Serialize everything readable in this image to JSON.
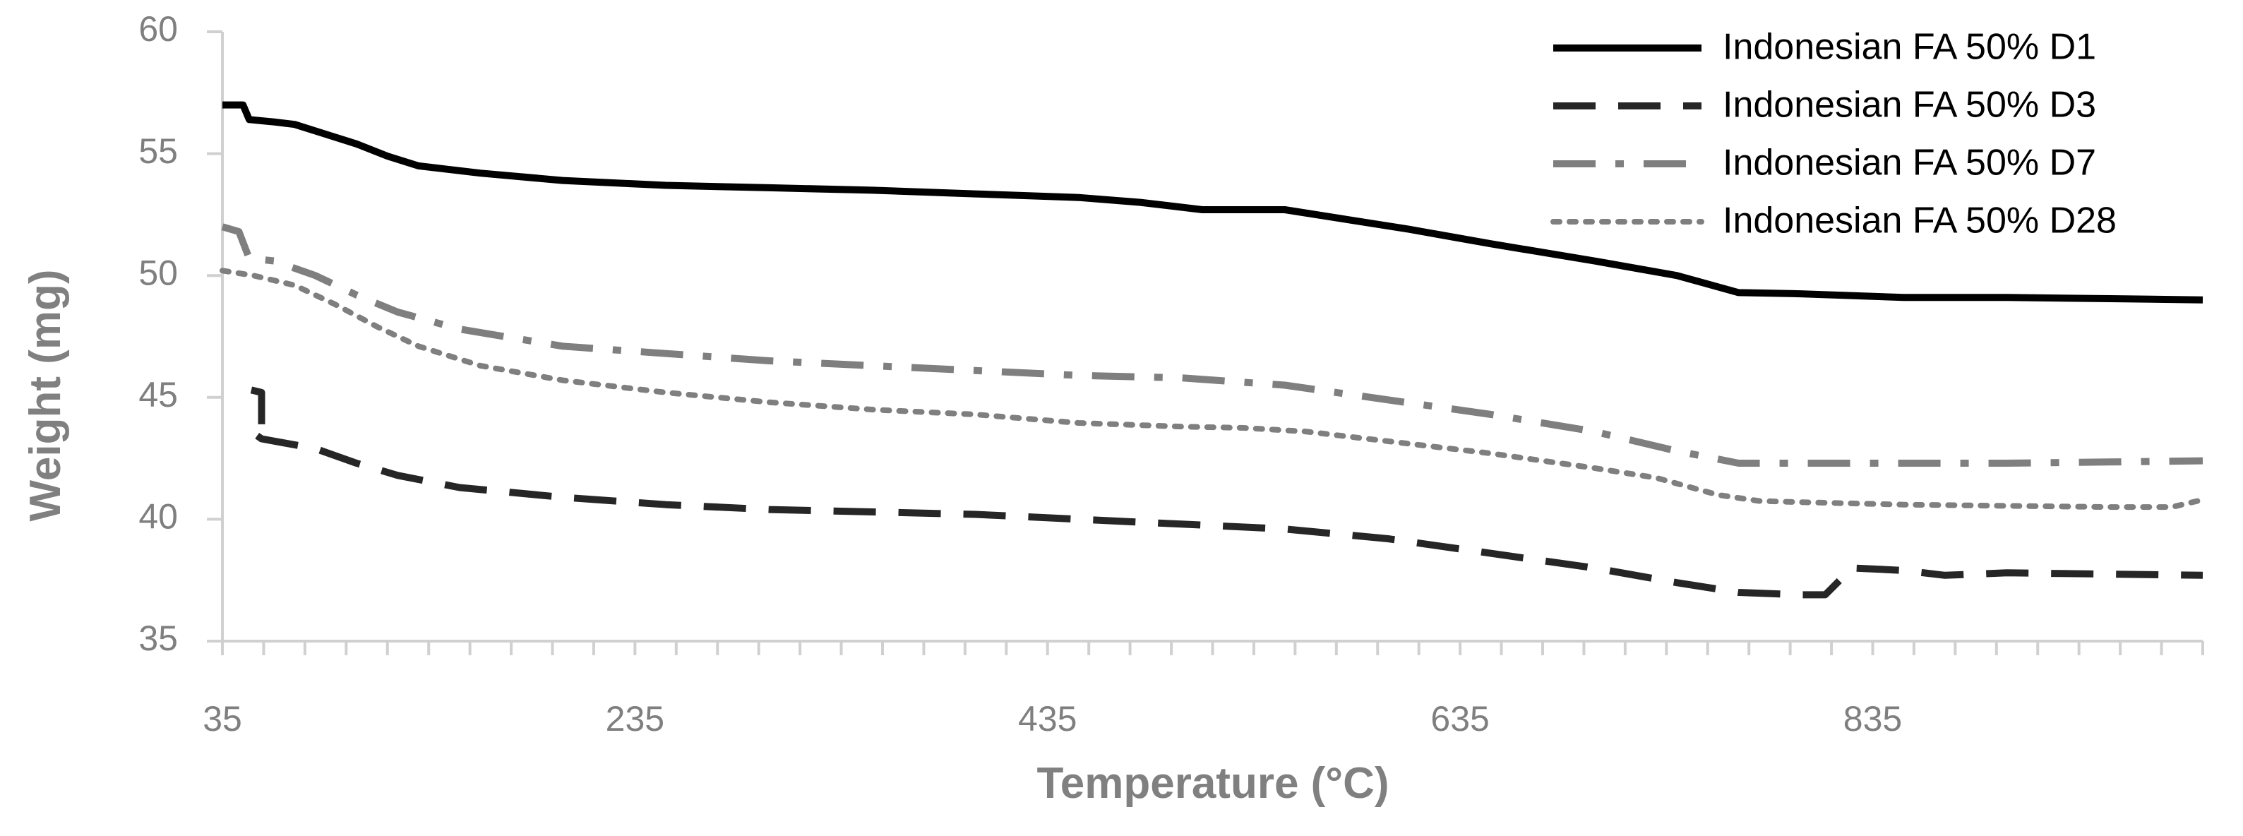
{
  "chart_data": {
    "type": "line",
    "xlabel": "Temperature (°C)",
    "ylabel": "Weight (mg)",
    "xlim": [
      35,
      995
    ],
    "ylim": [
      35,
      60
    ],
    "x_ticks": [
      "35",
      "235",
      "435",
      "635",
      "835"
    ],
    "y_ticks": [
      "35",
      "40",
      "45",
      "50",
      "55",
      "60"
    ],
    "grid": false,
    "legend_position": "top-right",
    "series": [
      {
        "name": "Indonesian FA 50% D1",
        "color": "#000000",
        "style": "solid",
        "points": [
          [
            35,
            57
          ],
          [
            45,
            57
          ],
          [
            48,
            56.4
          ],
          [
            60,
            56.3
          ],
          [
            70,
            56.2
          ],
          [
            85,
            55.8
          ],
          [
            100,
            55.4
          ],
          [
            115,
            54.9
          ],
          [
            130,
            54.5
          ],
          [
            160,
            54.2
          ],
          [
            200,
            53.9
          ],
          [
            250,
            53.7
          ],
          [
            300,
            53.6
          ],
          [
            350,
            53.5
          ],
          [
            400,
            53.35
          ],
          [
            450,
            53.2
          ],
          [
            480,
            53.0
          ],
          [
            510,
            52.7
          ],
          [
            550,
            52.7
          ],
          [
            580,
            52.3
          ],
          [
            610,
            51.9
          ],
          [
            650,
            51.3
          ],
          [
            700,
            50.6
          ],
          [
            740,
            50.0
          ],
          [
            770,
            49.3
          ],
          [
            800,
            49.25
          ],
          [
            850,
            49.1
          ],
          [
            900,
            49.1
          ],
          [
            950,
            49.05
          ],
          [
            995,
            49.0
          ]
        ]
      },
      {
        "name": "Indonesian FA 50% D3",
        "color": "#262626",
        "style": "dashed",
        "points": [
          [
            49,
            45.3
          ],
          [
            54,
            45.2
          ],
          [
            54,
            43.7
          ],
          [
            49,
            43.6
          ],
          [
            54,
            43.3
          ],
          [
            80,
            42.9
          ],
          [
            100,
            42.3
          ],
          [
            120,
            41.8
          ],
          [
            150,
            41.3
          ],
          [
            200,
            40.9
          ],
          [
            250,
            40.6
          ],
          [
            300,
            40.4
          ],
          [
            400,
            40.2
          ],
          [
            450,
            40.0
          ],
          [
            500,
            39.8
          ],
          [
            550,
            39.6
          ],
          [
            600,
            39.2
          ],
          [
            650,
            38.6
          ],
          [
            700,
            38.0
          ],
          [
            740,
            37.4
          ],
          [
            770,
            37.0
          ],
          [
            800,
            36.9
          ],
          [
            812,
            36.9
          ],
          [
            825,
            38.0
          ],
          [
            850,
            37.9
          ],
          [
            870,
            37.7
          ],
          [
            900,
            37.8
          ],
          [
            950,
            37.75
          ],
          [
            995,
            37.7
          ]
        ]
      },
      {
        "name": "Indonesian FA 50% D7",
        "color": "#7f7f7f",
        "style": "dash-dot",
        "points": [
          [
            35,
            52.0
          ],
          [
            43,
            51.8
          ],
          [
            48,
            50.7
          ],
          [
            60,
            50.6
          ],
          [
            80,
            50.0
          ],
          [
            100,
            49.2
          ],
          [
            120,
            48.5
          ],
          [
            150,
            47.8
          ],
          [
            200,
            47.1
          ],
          [
            250,
            46.8
          ],
          [
            300,
            46.5
          ],
          [
            400,
            46.1
          ],
          [
            450,
            45.9
          ],
          [
            500,
            45.8
          ],
          [
            550,
            45.5
          ],
          [
            600,
            44.9
          ],
          [
            650,
            44.3
          ],
          [
            700,
            43.6
          ],
          [
            740,
            42.8
          ],
          [
            770,
            42.3
          ],
          [
            800,
            42.3
          ],
          [
            850,
            42.3
          ],
          [
            900,
            42.3
          ],
          [
            950,
            42.35
          ],
          [
            995,
            42.4
          ]
        ]
      },
      {
        "name": "Indonesian FA 50% D28",
        "color": "#7f7f7f",
        "style": "dotted",
        "points": [
          [
            35,
            50.2
          ],
          [
            50,
            50.0
          ],
          [
            70,
            49.6
          ],
          [
            90,
            48.8
          ],
          [
            110,
            47.9
          ],
          [
            130,
            47.1
          ],
          [
            160,
            46.3
          ],
          [
            200,
            45.7
          ],
          [
            250,
            45.2
          ],
          [
            300,
            44.8
          ],
          [
            350,
            44.5
          ],
          [
            400,
            44.3
          ],
          [
            450,
            43.95
          ],
          [
            500,
            43.8
          ],
          [
            530,
            43.75
          ],
          [
            560,
            43.6
          ],
          [
            600,
            43.2
          ],
          [
            650,
            42.7
          ],
          [
            700,
            42.1
          ],
          [
            730,
            41.7
          ],
          [
            760,
            41.0
          ],
          [
            780,
            40.75
          ],
          [
            800,
            40.7
          ],
          [
            850,
            40.6
          ],
          [
            900,
            40.55
          ],
          [
            950,
            40.5
          ],
          [
            980,
            40.5
          ],
          [
            995,
            40.8
          ]
        ]
      }
    ]
  }
}
